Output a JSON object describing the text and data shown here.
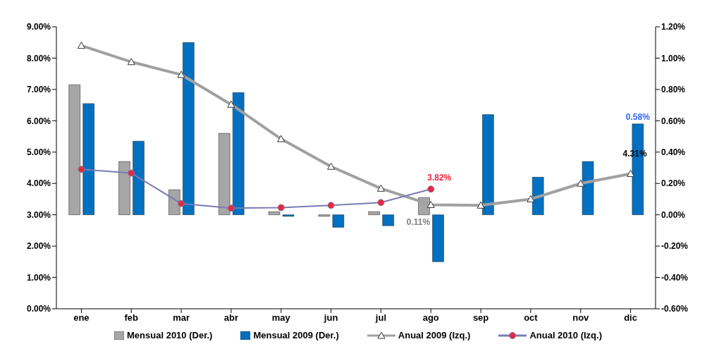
{
  "chart_data": {
    "type": "bar",
    "categories": [
      "ene",
      "feb",
      "mar",
      "abr",
      "may",
      "jun",
      "jul",
      "ago",
      "sep",
      "oct",
      "nov",
      "dic"
    ],
    "series": [
      {
        "name": "Mensual 2010 (Der.)",
        "axis": "y2",
        "color": "#a6a6a6",
        "values": [
          0.83,
          0.34,
          0.16,
          0.52,
          0.02,
          -0.01,
          0.02,
          0.11,
          null,
          null,
          null,
          null
        ],
        "value_labels": [
          null,
          null,
          null,
          null,
          null,
          null,
          null,
          "0.11%",
          null,
          null,
          null,
          null
        ]
      },
      {
        "name": "Mensual 2009 (Der.)",
        "axis": "y2",
        "color": "#0070c0",
        "values": [
          0.71,
          0.47,
          1.1,
          0.78,
          -0.01,
          -0.08,
          -0.07,
          -0.3,
          0.64,
          0.24,
          0.34,
          0.58
        ],
        "value_labels": [
          null,
          null,
          null,
          null,
          null,
          null,
          null,
          null,
          null,
          null,
          null,
          "0.58%"
        ]
      },
      {
        "name": "Anual 2009 (Izq.)",
        "type": "line",
        "axis": "y",
        "color": "#a0a0a0",
        "marker": "triangle",
        "values": [
          8.4,
          7.88,
          7.47,
          6.52,
          5.42,
          4.54,
          3.84,
          3.32,
          3.3,
          3.5,
          4.0,
          4.31
        ],
        "value_labels": [
          null,
          null,
          null,
          null,
          null,
          null,
          null,
          null,
          null,
          null,
          null,
          "4.31%"
        ]
      },
      {
        "name": "Anual 2010 (Izq.)",
        "type": "line",
        "axis": "y",
        "color": "#e8283c",
        "marker": "circle",
        "values": [
          4.45,
          4.33,
          3.36,
          3.21,
          3.23,
          3.3,
          3.39,
          3.82,
          null,
          null,
          null,
          null
        ],
        "value_labels": [
          null,
          null,
          null,
          null,
          null,
          null,
          null,
          "3.82%",
          null,
          null,
          null,
          null
        ]
      }
    ],
    "ylim": [
      0,
      9
    ],
    "yticks": [
      {
        "value": 0,
        "label": "0.00%"
      },
      {
        "value": 1,
        "label": "1.00%"
      },
      {
        "value": 2,
        "label": "2.00%"
      },
      {
        "value": 3,
        "label": "3.00%"
      },
      {
        "value": 4,
        "label": "4.00%"
      },
      {
        "value": 5,
        "label": "5.00%"
      },
      {
        "value": 6,
        "label": "6.00%"
      },
      {
        "value": 7,
        "label": "7.00%"
      },
      {
        "value": 8,
        "label": "8.00%"
      },
      {
        "value": 9,
        "label": "9.00%"
      }
    ],
    "y2lim": [
      -0.6,
      1.2
    ],
    "y2ticks": [
      {
        "value": -0.6,
        "label": "-0.60%"
      },
      {
        "value": -0.4,
        "label": "-0.40%"
      },
      {
        "value": -0.2,
        "label": "-0.20%"
      },
      {
        "value": 0,
        "label": "0.00%"
      },
      {
        "value": 0.2,
        "label": "0.20%"
      },
      {
        "value": 0.4,
        "label": "0.40%"
      },
      {
        "value": 0.6,
        "label": "0.60%"
      },
      {
        "value": 0.8,
        "label": "0.80%"
      },
      {
        "value": 1,
        "label": "1.00%"
      },
      {
        "value": 1.2,
        "label": "1.20%"
      }
    ],
    "legend": "bottom"
  }
}
